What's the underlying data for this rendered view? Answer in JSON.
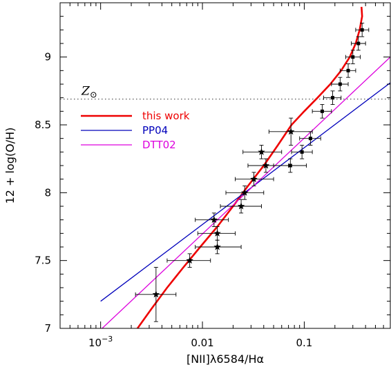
{
  "chart_data": {
    "type": "scatter",
    "title": "",
    "xlabel": "[NII]λ6584/Hα",
    "ylabel": "12 + log(O/H)",
    "x_scale": "log",
    "xlim": [
      0.0004,
      0.7
    ],
    "ylim": [
      7.0,
      9.4
    ],
    "x_ticks": [
      {
        "value": 0.001,
        "label": "10",
        "sup": "−3"
      },
      {
        "value": 0.01,
        "label": "0.01",
        "sup": ""
      },
      {
        "value": 0.1,
        "label": "0.1",
        "sup": ""
      }
    ],
    "y_ticks": [
      {
        "value": 7.0,
        "label": "7"
      },
      {
        "value": 7.5,
        "label": "7.5"
      },
      {
        "value": 8.0,
        "label": "8"
      },
      {
        "value": 8.5,
        "label": "8.5"
      },
      {
        "value": 9.0,
        "label": "9"
      }
    ],
    "solar_line": {
      "y": 8.69,
      "label": "Z",
      "symbol": "⊙",
      "color": "#555555"
    },
    "legend": {
      "placement": "left-middle",
      "entries": [
        {
          "label": "this work",
          "color": "#ee0000"
        },
        {
          "label": "PP04",
          "color": "#0000bb"
        },
        {
          "label": "DTT02",
          "color": "#dd00dd"
        }
      ]
    },
    "series": [
      {
        "name": "this work",
        "kind": "line",
        "color": "#ee0000",
        "points": [
          [
            0.0023,
            7.0
          ],
          [
            0.0032,
            7.15
          ],
          [
            0.0045,
            7.3
          ],
          [
            0.0065,
            7.45
          ],
          [
            0.0095,
            7.6
          ],
          [
            0.014,
            7.75
          ],
          [
            0.02,
            7.9
          ],
          [
            0.028,
            8.05
          ],
          [
            0.04,
            8.2
          ],
          [
            0.055,
            8.35
          ],
          [
            0.075,
            8.5
          ],
          [
            0.1,
            8.6
          ],
          [
            0.135,
            8.7
          ],
          [
            0.18,
            8.8
          ],
          [
            0.23,
            8.9
          ],
          [
            0.28,
            9.0
          ],
          [
            0.32,
            9.1
          ],
          [
            0.35,
            9.2
          ],
          [
            0.37,
            9.3
          ],
          [
            0.365,
            9.37
          ]
        ]
      },
      {
        "name": "PP04",
        "kind": "line",
        "color": "#0000bb",
        "points": [
          [
            0.001,
            7.2
          ],
          [
            0.7,
            8.81
          ]
        ]
      },
      {
        "name": "DTT02",
        "kind": "line",
        "color": "#dd00dd",
        "points": [
          [
            0.001,
            6.99
          ],
          [
            0.7,
            9.0
          ]
        ]
      }
    ],
    "data_points": {
      "stars": [
        {
          "x": 0.0035,
          "y": 7.25,
          "xlo": 0.0022,
          "xhi": 0.0055,
          "ylo": 7.05,
          "yhi": 7.45
        },
        {
          "x": 0.0075,
          "y": 7.5,
          "xlo": 0.0045,
          "xhi": 0.012,
          "ylo": 7.45,
          "yhi": 7.55
        },
        {
          "x": 0.013,
          "y": 7.8,
          "xlo": 0.0085,
          "xhi": 0.018,
          "ylo": 7.75,
          "yhi": 7.85
        },
        {
          "x": 0.014,
          "y": 7.7,
          "xlo": 0.009,
          "xhi": 0.021,
          "ylo": 7.65,
          "yhi": 7.75
        },
        {
          "x": 0.014,
          "y": 7.6,
          "xlo": 0.0085,
          "xhi": 0.024,
          "ylo": 7.55,
          "yhi": 7.65
        },
        {
          "x": 0.024,
          "y": 7.9,
          "xlo": 0.015,
          "xhi": 0.038,
          "ylo": 7.85,
          "yhi": 7.95
        },
        {
          "x": 0.026,
          "y": 8.0,
          "xlo": 0.017,
          "xhi": 0.04,
          "ylo": 7.95,
          "yhi": 8.05
        },
        {
          "x": 0.032,
          "y": 8.1,
          "xlo": 0.021,
          "xhi": 0.05,
          "ylo": 8.05,
          "yhi": 8.15
        },
        {
          "x": 0.038,
          "y": 8.3,
          "xlo": 0.025,
          "xhi": 0.06,
          "ylo": 8.25,
          "yhi": 8.35
        },
        {
          "x": 0.042,
          "y": 8.2,
          "xlo": 0.028,
          "xhi": 0.07,
          "ylo": 8.15,
          "yhi": 8.25
        },
        {
          "x": 0.074,
          "y": 8.45,
          "xlo": 0.045,
          "xhi": 0.12,
          "ylo": 8.35,
          "yhi": 8.55
        }
      ],
      "squares": [
        {
          "x": 0.073,
          "y": 8.2,
          "xlo": 0.05,
          "xhi": 0.105,
          "ylo": 8.15,
          "yhi": 8.25
        },
        {
          "x": 0.095,
          "y": 8.3,
          "xlo": 0.075,
          "xhi": 0.12,
          "ylo": 8.25,
          "yhi": 8.35
        },
        {
          "x": 0.115,
          "y": 8.4,
          "xlo": 0.09,
          "xhi": 0.145,
          "ylo": 8.35,
          "yhi": 8.45
        },
        {
          "x": 0.15,
          "y": 8.6,
          "xlo": 0.12,
          "xhi": 0.185,
          "ylo": 8.55,
          "yhi": 8.65
        },
        {
          "x": 0.19,
          "y": 8.7,
          "xlo": 0.155,
          "xhi": 0.23,
          "ylo": 8.65,
          "yhi": 8.75
        },
        {
          "x": 0.225,
          "y": 8.8,
          "xlo": 0.185,
          "xhi": 0.27,
          "ylo": 8.75,
          "yhi": 8.85
        },
        {
          "x": 0.27,
          "y": 8.9,
          "xlo": 0.225,
          "xhi": 0.32,
          "ylo": 8.85,
          "yhi": 8.95
        },
        {
          "x": 0.3,
          "y": 9.0,
          "xlo": 0.255,
          "xhi": 0.355,
          "ylo": 8.95,
          "yhi": 9.05
        },
        {
          "x": 0.34,
          "y": 9.1,
          "xlo": 0.29,
          "xhi": 0.4,
          "ylo": 9.05,
          "yhi": 9.15
        },
        {
          "x": 0.37,
          "y": 9.2,
          "xlo": 0.32,
          "xhi": 0.43,
          "ylo": 9.15,
          "yhi": 9.25
        }
      ]
    }
  }
}
